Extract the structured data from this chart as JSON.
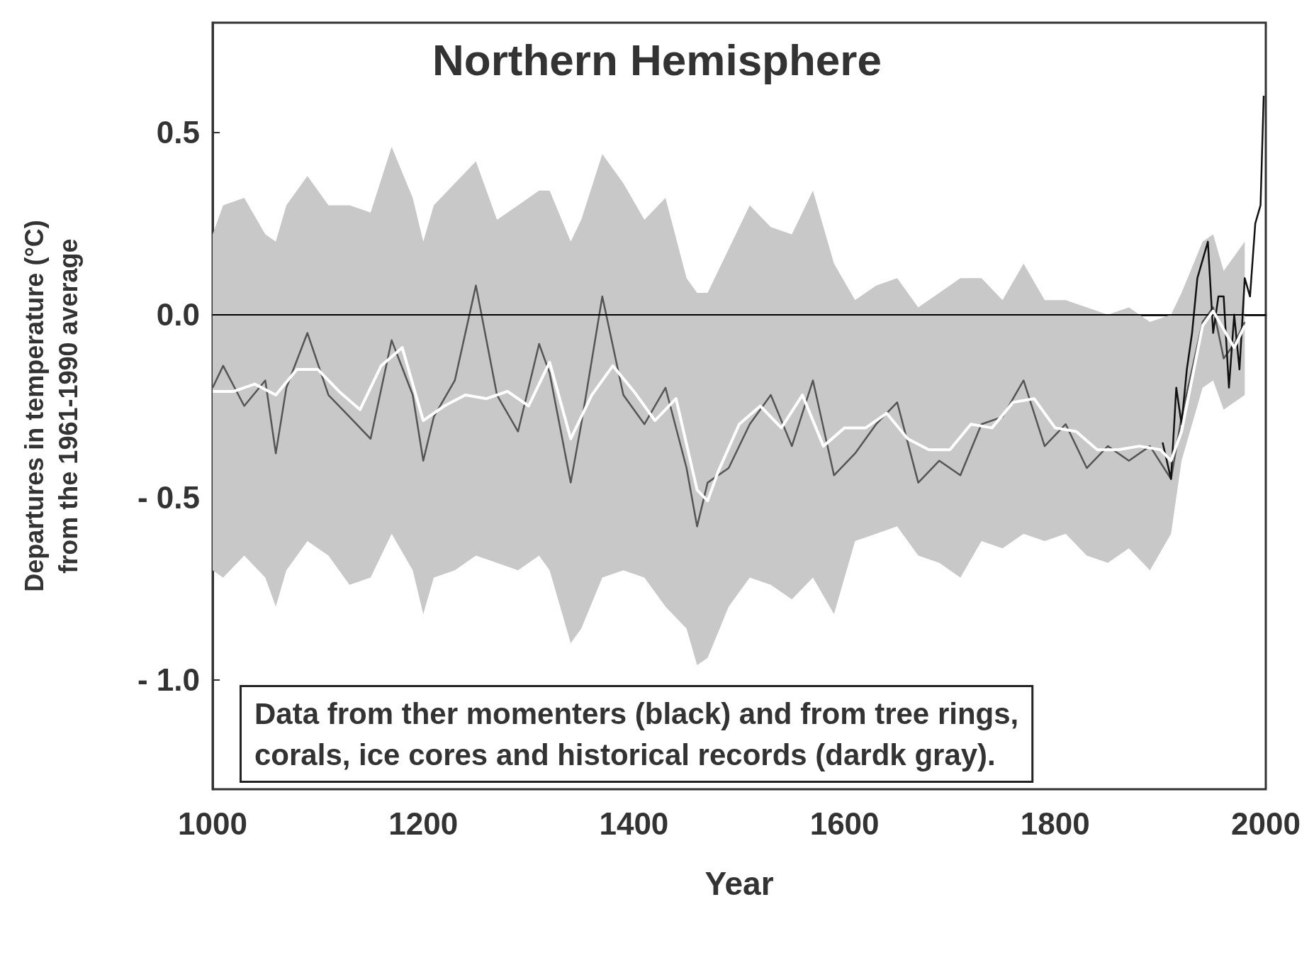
{
  "chart_data": {
    "type": "line",
    "title": "Northern Hemisphere",
    "xlabel": "Year",
    "ylabel": "Departures in temperature (°C)\nfrom the 1961-1990 average",
    "xlim": [
      1000,
      2000
    ],
    "xticks": [
      1000,
      1200,
      1400,
      1600,
      1800,
      2000
    ],
    "ylim": [
      -1.3,
      0.8
    ],
    "yticks": [
      {
        "value": 0.5,
        "label": "0.5"
      },
      {
        "value": 0.0,
        "label": "0.0"
      },
      {
        "value": -0.5,
        "label": "- 0.5"
      },
      {
        "value": -1.0,
        "label": "- 1.0"
      }
    ],
    "grid": false,
    "marker": "none",
    "line_style": "solid",
    "ref_lines": [
      {
        "axis": "y",
        "value": 0,
        "color": "#000000"
      }
    ],
    "annotations": [
      "Data from ther momenters (black) and from tree rings,\ncorals, ice cores and historical records (dardk gray)."
    ],
    "series": [
      {
        "color": "#555555",
        "x": [
          1000,
          1010,
          1030,
          1050,
          1060,
          1070,
          1090,
          1110,
          1130,
          1150,
          1170,
          1190,
          1200,
          1210,
          1230,
          1250,
          1270,
          1290,
          1310,
          1320,
          1340,
          1350,
          1370,
          1390,
          1410,
          1430,
          1450,
          1460,
          1470,
          1490,
          1510,
          1530,
          1550,
          1570,
          1590,
          1610,
          1630,
          1650,
          1670,
          1690,
          1710,
          1730,
          1750,
          1770,
          1790,
          1810,
          1830,
          1850,
          1870,
          1890,
          1910,
          1920,
          1940,
          1950,
          1960,
          1970,
          1980
        ],
        "values": [
          -0.2,
          -0.14,
          -0.25,
          -0.18,
          -0.38,
          -0.2,
          -0.05,
          -0.22,
          -0.28,
          -0.34,
          -0.07,
          -0.22,
          -0.4,
          -0.28,
          -0.18,
          0.08,
          -0.22,
          -0.32,
          -0.08,
          -0.16,
          -0.46,
          -0.3,
          0.05,
          -0.22,
          -0.3,
          -0.2,
          -0.42,
          -0.58,
          -0.46,
          -0.42,
          -0.3,
          -0.22,
          -0.36,
          -0.18,
          -0.44,
          -0.38,
          -0.3,
          -0.24,
          -0.46,
          -0.4,
          -0.44,
          -0.3,
          -0.28,
          -0.18,
          -0.36,
          -0.3,
          -0.42,
          -0.36,
          -0.4,
          -0.36,
          -0.45,
          -0.28,
          -0.02,
          0.02,
          -0.12,
          -0.08,
          -0.02
        ],
        "lower": [
          -0.7,
          -0.72,
          -0.66,
          -0.72,
          -0.8,
          -0.7,
          -0.62,
          -0.66,
          -0.74,
          -0.72,
          -0.6,
          -0.7,
          -0.82,
          -0.72,
          -0.7,
          -0.66,
          -0.68,
          -0.7,
          -0.66,
          -0.7,
          -0.9,
          -0.86,
          -0.72,
          -0.7,
          -0.72,
          -0.8,
          -0.86,
          -0.96,
          -0.94,
          -0.8,
          -0.72,
          -0.74,
          -0.78,
          -0.72,
          -0.82,
          -0.62,
          -0.6,
          -0.58,
          -0.66,
          -0.68,
          -0.72,
          -0.62,
          -0.64,
          -0.6,
          -0.62,
          -0.6,
          -0.66,
          -0.68,
          -0.64,
          -0.7,
          -0.6,
          -0.4,
          -0.2,
          -0.18,
          -0.26,
          -0.24,
          -0.22
        ],
        "upper": [
          0.22,
          0.3,
          0.32,
          0.22,
          0.2,
          0.3,
          0.38,
          0.3,
          0.3,
          0.28,
          0.46,
          0.32,
          0.2,
          0.3,
          0.36,
          0.42,
          0.26,
          0.3,
          0.34,
          0.34,
          0.2,
          0.26,
          0.44,
          0.36,
          0.26,
          0.32,
          0.1,
          0.06,
          0.06,
          0.18,
          0.3,
          0.24,
          0.22,
          0.34,
          0.14,
          0.04,
          0.08,
          0.1,
          0.02,
          0.06,
          0.1,
          0.1,
          0.04,
          0.14,
          0.04,
          0.04,
          0.02,
          0.0,
          0.02,
          -0.02,
          0.0,
          0.06,
          0.2,
          0.22,
          0.12,
          0.16,
          0.2
        ]
      },
      {
        "color": "#111111",
        "x": [
          1902,
          1910,
          1915,
          1920,
          1925,
          1930,
          1935,
          1940,
          1945,
          1950,
          1955,
          1960,
          1965,
          1970,
          1975,
          1980,
          1985,
          1990,
          1995,
          1998
        ],
        "values": [
          -0.35,
          -0.45,
          -0.2,
          -0.3,
          -0.15,
          -0.05,
          0.1,
          0.15,
          0.2,
          -0.05,
          0.05,
          0.05,
          -0.2,
          0.0,
          -0.15,
          0.1,
          0.05,
          0.25,
          0.3,
          0.6
        ]
      },
      {
        "color": "#ffffff",
        "x": [
          1000,
          1020,
          1040,
          1060,
          1080,
          1100,
          1120,
          1140,
          1160,
          1180,
          1200,
          1220,
          1240,
          1260,
          1280,
          1300,
          1320,
          1340,
          1360,
          1380,
          1400,
          1420,
          1440,
          1460,
          1470,
          1480,
          1500,
          1520,
          1540,
          1560,
          1580,
          1600,
          1620,
          1640,
          1660,
          1680,
          1700,
          1720,
          1740,
          1760,
          1780,
          1800,
          1820,
          1840,
          1860,
          1880,
          1900,
          1910,
          1920,
          1940,
          1950,
          1970,
          1980
        ],
        "values": [
          -0.21,
          -0.21,
          -0.19,
          -0.22,
          -0.15,
          -0.15,
          -0.21,
          -0.26,
          -0.14,
          -0.09,
          -0.29,
          -0.25,
          -0.22,
          -0.23,
          -0.21,
          -0.25,
          -0.13,
          -0.34,
          -0.22,
          -0.14,
          -0.21,
          -0.29,
          -0.23,
          -0.48,
          -0.51,
          -0.43,
          -0.3,
          -0.25,
          -0.31,
          -0.22,
          -0.36,
          -0.31,
          -0.31,
          -0.27,
          -0.34,
          -0.37,
          -0.37,
          -0.3,
          -0.31,
          -0.24,
          -0.23,
          -0.31,
          -0.32,
          -0.37,
          -0.37,
          -0.36,
          -0.37,
          -0.4,
          -0.32,
          -0.03,
          0.01,
          -0.09,
          -0.03
        ]
      }
    ]
  }
}
